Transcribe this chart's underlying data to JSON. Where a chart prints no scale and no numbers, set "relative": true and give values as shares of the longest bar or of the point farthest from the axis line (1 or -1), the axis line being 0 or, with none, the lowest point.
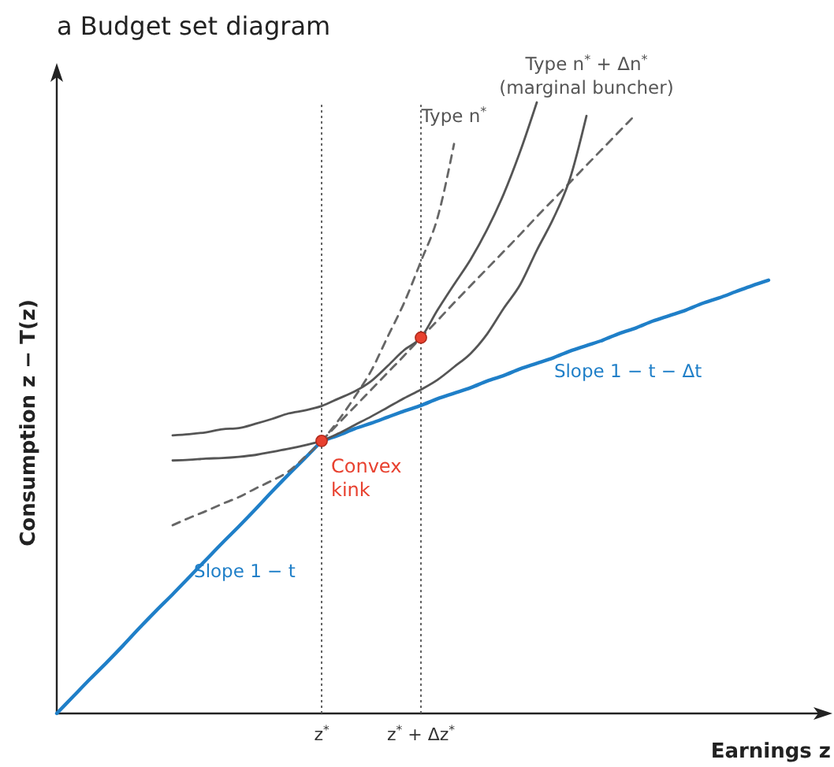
{
  "chart_data": {
    "type": "line",
    "title": "a Budget set diagram",
    "xlabel": "Earnings z",
    "ylabel": "Consumption z − T(z)",
    "relative": true,
    "categories": [
      null,
      null,
      null,
      null,
      null,
      null,
      null,
      null,
      null,
      null,
      null,
      null,
      null,
      null,
      null,
      null,
      "z$^{*}$",
      null,
      null,
      null,
      null,
      null,
      "z$^{*}$ + Δz$^{*}$",
      null,
      null,
      null,
      null,
      null,
      null,
      null,
      null,
      null,
      null,
      null,
      null,
      null,
      null,
      null,
      null,
      null,
      null,
      null,
      null,
      null
    ],
    "ref_lines": [
      {
        "axis": "x",
        "value": "z$^{*}$",
        "color": "#555555",
        "line_style": "dotted"
      },
      {
        "axis": "x",
        "value": "z$^{*}$ + Δz$^{*}$",
        "color": "#555555",
        "line_style": "dotted"
      }
    ],
    "series": [
      {
        "name": "Slope 1 − t",
        "color": "#1f7fc8",
        "values": [
          0,
          0.028,
          0.056,
          0.083,
          0.111,
          0.14,
          0.168,
          0.195,
          0.223,
          0.251,
          0.279,
          0.306,
          0.334,
          0.363,
          0.391,
          0.418,
          0.446,
          null,
          null,
          null,
          null,
          null,
          null,
          null,
          null,
          null,
          null,
          null,
          null,
          null,
          null,
          null,
          null,
          null,
          null,
          null,
          null,
          null,
          null,
          null,
          null,
          null,
          null,
          null
        ]
      },
      {
        "name": "Slope 1 − t − Δt",
        "color": "#1f7fc8",
        "values": [
          null,
          null,
          null,
          null,
          null,
          null,
          null,
          null,
          null,
          null,
          null,
          null,
          null,
          null,
          null,
          null,
          0.446,
          0.455,
          0.466,
          0.475,
          0.485,
          0.495,
          0.504,
          0.515,
          0.524,
          0.533,
          0.544,
          0.553,
          0.564,
          0.573,
          0.582,
          0.593,
          0.602,
          0.611,
          0.622,
          0.631,
          0.642,
          0.651,
          0.66,
          0.671,
          0.68,
          0.69,
          0.7,
          0.709
        ]
      },
      {
        "color": "#666666",
        "line_style": "dashed",
        "values": [
          null,
          null,
          null,
          null,
          null,
          null,
          null,
          null,
          null,
          null,
          null,
          null,
          null,
          null,
          null,
          null,
          0.446,
          0.474,
          0.502,
          0.53,
          0.558,
          0.586,
          0.615,
          0.643,
          0.672,
          0.7,
          0.728,
          0.756,
          0.784,
          0.813,
          0.841,
          0.869,
          0.897,
          0.925,
          0.953,
          0.981,
          null,
          null,
          null,
          null,
          null,
          null,
          null,
          null
        ]
      },
      {
        "name": "Type n$^{*}$",
        "color": "#666666",
        "line_style": "dashed",
        "values": [
          null,
          null,
          null,
          null,
          null,
          null,
          null,
          0.308,
          0.32,
          0.331,
          0.343,
          0.354,
          0.368,
          0.381,
          0.396,
          0.42,
          0.446,
          0.479,
          0.518,
          0.561,
          0.617,
          0.673,
          0.74,
          0.811,
          0.932,
          null,
          null,
          null,
          null,
          null,
          null,
          null,
          null,
          null,
          null,
          null,
          null,
          null,
          null,
          null,
          null,
          null,
          null,
          null
        ]
      },
      {
        "color": "#555555",
        "values": [
          null,
          null,
          null,
          null,
          null,
          null,
          null,
          0.455,
          0.457,
          0.46,
          0.465,
          0.467,
          0.474,
          0.482,
          0.491,
          0.496,
          0.503,
          0.515,
          0.527,
          0.544,
          0.569,
          0.595,
          0.615,
          0.66,
          0.702,
          0.743,
          0.792,
          0.85,
          0.92,
          1.0,
          null,
          null,
          null,
          null,
          null,
          null,
          null,
          null,
          null,
          null,
          null,
          null,
          null,
          null
        ]
      },
      {
        "name": "Type n$^{*}$ + Δn$^{*}$ (marginal buncher)",
        "color": "#555555",
        "values": [
          null,
          null,
          null,
          null,
          null,
          null,
          null,
          0.414,
          0.415,
          0.417,
          0.418,
          0.42,
          0.423,
          0.428,
          0.433,
          0.439,
          0.446,
          0.458,
          0.472,
          0.486,
          0.501,
          0.516,
          0.53,
          0.546,
          0.567,
          0.589,
          0.621,
          0.663,
          0.702,
          0.758,
          0.81,
          0.875,
          0.978,
          null,
          null,
          null,
          null,
          null,
          null,
          null,
          null,
          null,
          null,
          null
        ]
      },
      {
        "type": "scatter",
        "name": "Convex kink",
        "color": "#e8412f",
        "marker": "circle",
        "values": [
          null,
          null,
          null,
          null,
          null,
          null,
          null,
          null,
          null,
          null,
          null,
          null,
          null,
          null,
          null,
          null,
          0.446,
          null,
          null,
          null,
          null,
          null,
          null,
          null,
          null,
          null,
          null,
          null,
          null,
          null,
          null,
          null,
          null,
          null,
          null,
          null,
          null,
          null,
          null,
          null,
          null,
          null,
          null,
          null
        ]
      },
      {
        "type": "scatter",
        "color": "#e8412f",
        "marker": "circle",
        "values": [
          null,
          null,
          null,
          null,
          null,
          null,
          null,
          null,
          null,
          null,
          null,
          null,
          null,
          null,
          null,
          null,
          null,
          null,
          null,
          null,
          null,
          null,
          0.615,
          null,
          null,
          null,
          null,
          null,
          null,
          null,
          null,
          null,
          null,
          null,
          null,
          null,
          null,
          null,
          null,
          null,
          null,
          null,
          null,
          null
        ]
      }
    ]
  }
}
